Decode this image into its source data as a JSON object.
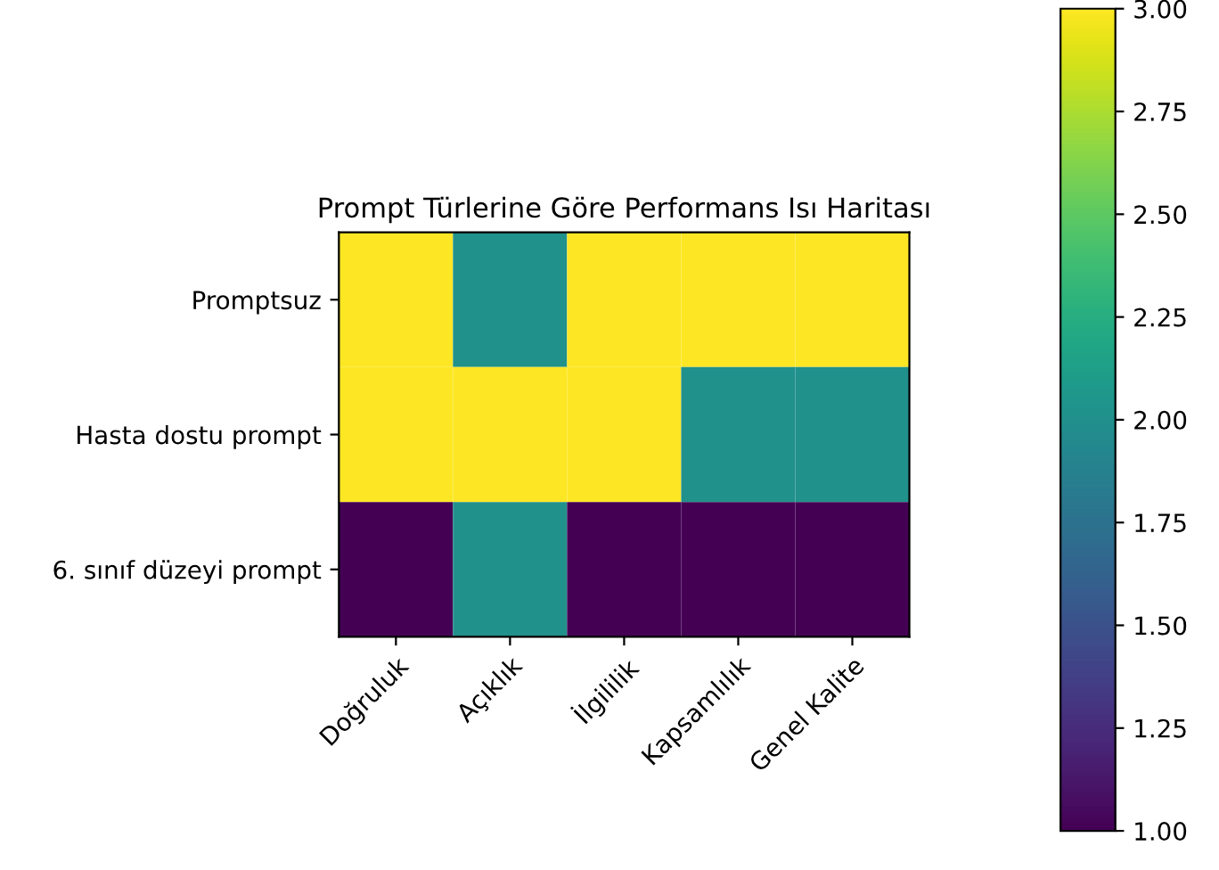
{
  "chart_data": {
    "type": "heatmap",
    "title": "Prompt Türlerine Göre Performans Isı Haritası",
    "categories": [
      "Doğruluk",
      "Açıklık",
      "İlgililik",
      "Kapsamlılık",
      "Genel Kalite"
    ],
    "y_categories": [
      "Promptsuz",
      "Hasta dostu prompt",
      "6. sınıf düzeyi prompt"
    ],
    "cells": [
      [
        3,
        2,
        3,
        3,
        3
      ],
      [
        3,
        3,
        3,
        2,
        2
      ],
      [
        1,
        2,
        1,
        1,
        1
      ]
    ],
    "clim": [
      1,
      3
    ],
    "cticks": [
      {
        "value": 1,
        "label": "1.00"
      },
      {
        "value": 1.25,
        "label": "1.25"
      },
      {
        "value": 1.5,
        "label": "1.50"
      },
      {
        "value": 1.75,
        "label": "1.75"
      },
      {
        "value": 2,
        "label": "2.00"
      },
      {
        "value": 2.25,
        "label": "2.25"
      },
      {
        "value": 2.5,
        "label": "2.50"
      },
      {
        "value": 2.75,
        "label": "2.75"
      },
      {
        "value": 3,
        "label": "3.00"
      }
    ]
  }
}
